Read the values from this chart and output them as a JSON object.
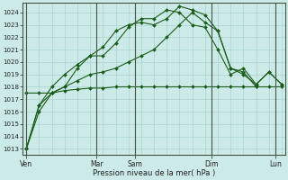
{
  "xlabel": "Pression niveau de la mer( hPa )",
  "bg_color": "#cceae7",
  "grid_color": "#aad4d0",
  "line_color": "#1a5c1a",
  "ylim": [
    1012.5,
    1024.8
  ],
  "yticks": [
    1013,
    1014,
    1015,
    1016,
    1017,
    1018,
    1019,
    1020,
    1021,
    1022,
    1023,
    1024
  ],
  "xtick_positions": [
    0.0,
    5.5,
    8.5,
    14.5,
    19.5
  ],
  "xtick_labels": [
    "Ven",
    "Mar",
    "Sam",
    "Dim",
    "Lun"
  ],
  "vline_positions": [
    0.0,
    5.5,
    8.5,
    14.5,
    19.5
  ],
  "series": [
    {
      "x": [
        0,
        1,
        2,
        3,
        4,
        5,
        6,
        7,
        8,
        9,
        10,
        11,
        12,
        13,
        14,
        15,
        16,
        17,
        18,
        19,
        20
      ],
      "y": [
        1013.0,
        1016.5,
        1018.0,
        1019.0,
        1019.8,
        1020.5,
        1021.2,
        1022.5,
        1023.0,
        1023.2,
        1023.0,
        1023.5,
        1024.5,
        1024.2,
        1023.8,
        1022.5,
        1019.5,
        1019.2,
        1018.0,
        null,
        null
      ]
    },
    {
      "x": [
        0,
        1,
        2,
        3,
        4,
        5,
        6,
        7,
        8,
        9,
        10,
        11,
        12,
        13,
        14,
        15,
        16,
        17,
        18,
        19,
        20
      ],
      "y": [
        1013.0,
        1016.0,
        1017.5,
        1018.0,
        1019.5,
        1020.5,
        1020.5,
        1021.5,
        1022.8,
        1023.5,
        1023.5,
        1024.2,
        1024.0,
        1023.0,
        1022.8,
        1021.0,
        1019.0,
        1019.5,
        1018.2,
        1019.2,
        1018.2
      ]
    },
    {
      "x": [
        0,
        1,
        2,
        3,
        4,
        5,
        6,
        7,
        8,
        9,
        10,
        11,
        12,
        13,
        14,
        15,
        16,
        17,
        18,
        19,
        20
      ],
      "y": [
        1013.0,
        1016.5,
        1017.5,
        1018.0,
        1018.5,
        1019.0,
        1019.2,
        1019.5,
        1020.0,
        1020.5,
        1021.0,
        1022.0,
        1023.0,
        1024.0,
        1023.2,
        1022.5,
        1019.5,
        1019.0,
        1018.2,
        1019.2,
        1018.2
      ]
    },
    {
      "x": [
        0,
        1,
        2,
        3,
        4,
        5,
        6,
        7,
        8,
        9,
        10,
        11,
        12,
        13,
        14,
        15,
        16,
        17,
        18,
        19,
        20
      ],
      "y": [
        1017.5,
        1017.5,
        1017.5,
        1017.7,
        1017.8,
        1017.9,
        1017.9,
        1018.0,
        1018.0,
        1018.0,
        1018.0,
        1018.0,
        1018.0,
        1018.0,
        1018.0,
        1018.0,
        1018.0,
        1018.0,
        1018.0,
        1018.0,
        1018.0
      ]
    }
  ]
}
